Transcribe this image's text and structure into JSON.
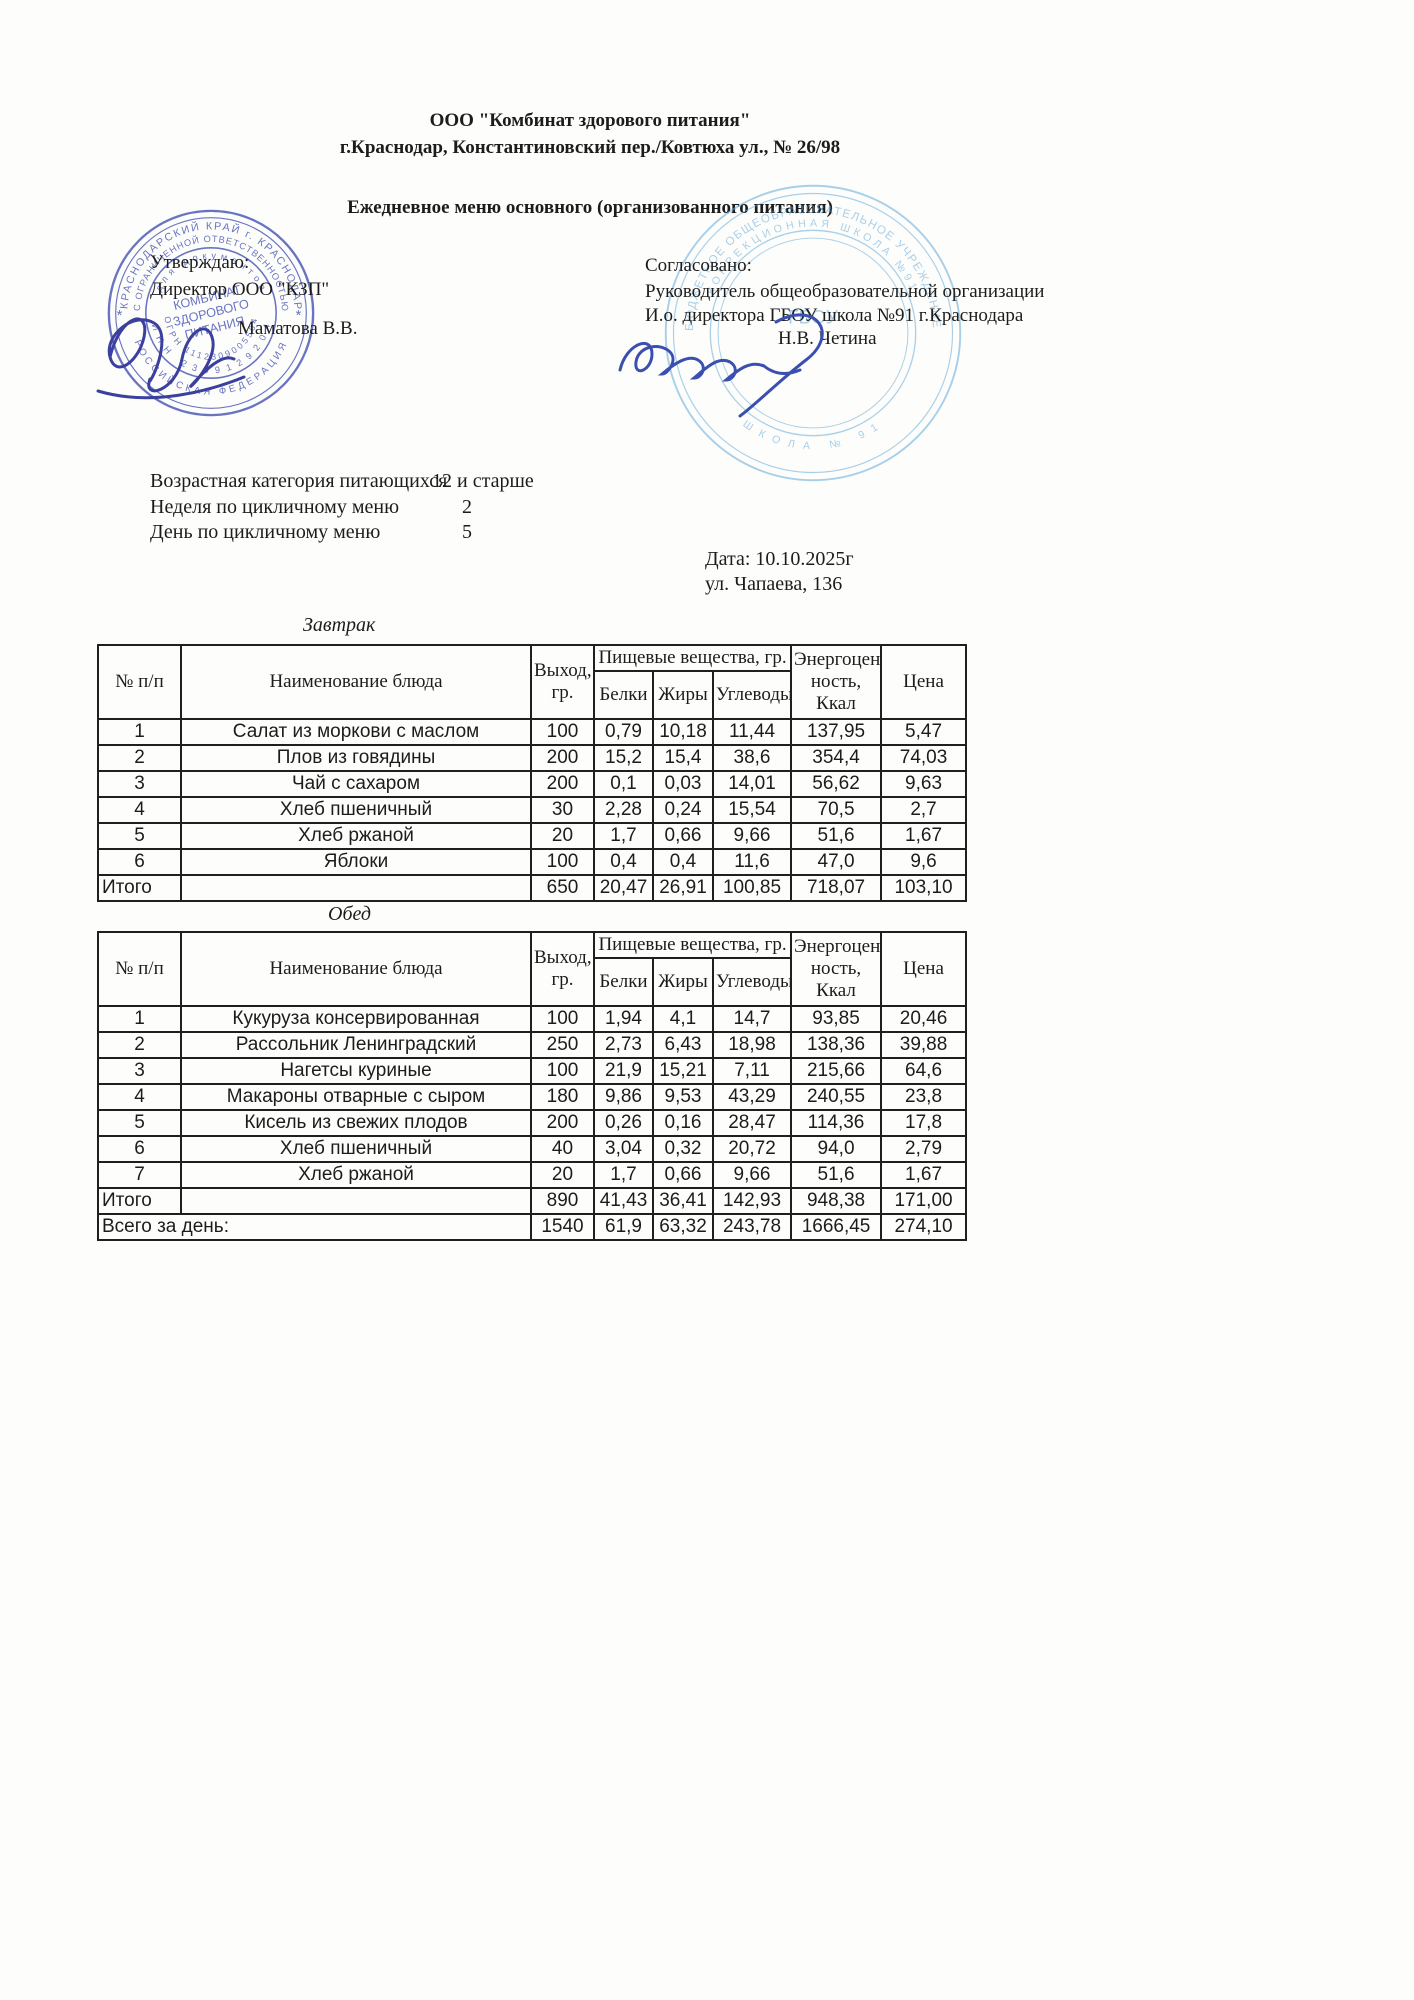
{
  "header": {
    "org_line1": "ООО \"Комбинат здорового питания\"",
    "org_line2": "г.Краснодар, Константиновский пер./Ковтюха ул., № 26/98",
    "title": "Ежедневное меню основного (организованного питания)"
  },
  "approve": {
    "label": "Утверждаю:",
    "role": "Директор ООО \"КЗП\"",
    "name": "Маматова В.В."
  },
  "agree": {
    "label": "Согласовано:",
    "role1": "Руководитель общеобразовательной организации",
    "role2": "И.о. директора ГБОУ школа №91 г.Краснодара",
    "name": "Н.В. Четина"
  },
  "meta": {
    "age_label": "Возрастная категория питающихся",
    "age_value": "12 и старше",
    "week_label": "Неделя по цикличному меню",
    "week_value": "2",
    "day_label": "День по цикличному меню",
    "day_value": "5",
    "date_line": "Дата:  10.10.2025г",
    "address_line": "ул. Чапаева, 136"
  },
  "table_headers": {
    "num": "№ п/п",
    "dish": "Наименование блюда",
    "out": "Выход, гр.",
    "nutrients": "Пищевые вещества, гр.",
    "protein": "Белки",
    "fat": "Жиры",
    "carbs": "Углеводы",
    "energy": "Энергоцен ность, Ккал",
    "price": "Цена"
  },
  "breakfast": {
    "section_title": "Завтрак",
    "rows": [
      [
        "1",
        "Салат из моркови с маслом",
        "100",
        "0,79",
        "10,18",
        "11,44",
        "137,95",
        "5,47"
      ],
      [
        "2",
        "Плов из говядины",
        "200",
        "15,2",
        "15,4",
        "38,6",
        "354,4",
        "74,03"
      ],
      [
        "3",
        "Чай с сахаром",
        "200",
        "0,1",
        "0,03",
        "14,01",
        "56,62",
        "9,63"
      ],
      [
        "4",
        "Хлеб пшеничный",
        "30",
        "2,28",
        "0,24",
        "15,54",
        "70,5",
        "2,7"
      ],
      [
        "5",
        "Хлеб ржаной",
        "20",
        "1,7",
        "0,66",
        "9,66",
        "51,6",
        "1,67"
      ],
      [
        "6",
        "Яблоки",
        "100",
        "0,4",
        "0,4",
        "11,6",
        "47,0",
        "9,6"
      ]
    ],
    "total_label": "Итого",
    "totals": [
      "650",
      "20,47",
      "26,91",
      "100,85",
      "718,07",
      "103,10"
    ]
  },
  "lunch": {
    "section_title": "Обед",
    "rows": [
      [
        "1",
        "Кукуруза консервированная",
        "100",
        "1,94",
        "4,1",
        "14,7",
        "93,85",
        "20,46"
      ],
      [
        "2",
        "Рассольник Ленинградский",
        "250",
        "2,73",
        "6,43",
        "18,98",
        "138,36",
        "39,88"
      ],
      [
        "3",
        "Нагетсы куриные",
        "100",
        "21,9",
        "15,21",
        "7,11",
        "215,66",
        "64,6"
      ],
      [
        "4",
        "Макароны отварные с сыром",
        "180",
        "9,86",
        "9,53",
        "43,29",
        "240,55",
        "23,8"
      ],
      [
        "5",
        "Кисель из свежих плодов",
        "200",
        "0,26",
        "0,16",
        "28,47",
        "114,36",
        "17,8"
      ],
      [
        "6",
        "Хлеб пшеничный",
        "40",
        "3,04",
        "0,32",
        "20,72",
        "94,0",
        "2,79"
      ],
      [
        "7",
        "Хлеб ржаной",
        "20",
        "1,7",
        "0,66",
        "9,66",
        "51,6",
        "1,67"
      ]
    ],
    "total_label": "Итого",
    "totals": [
      "890",
      "41,43",
      "36,41",
      "142,93",
      "948,38",
      "171,00"
    ],
    "grand_label": "Всего за день:",
    "grand": [
      "1540",
      "61,9",
      "63,32",
      "243,78",
      "1666,45",
      "274,10"
    ]
  },
  "seal_left": {
    "ring_outer": "КРАСНОДАРСКИЙ КРАЙ г. КРАСНОДАР",
    "ring_inner": "С ОГРАНИЧЕННОЙ ОТВЕТСТВЕННОСТЬЮ",
    "ring_bottom": "РОССИЙСКАЯ ФЕДЕРАЦИЯ",
    "doc_text": "для документов",
    "center1": "КОМБИНАТ",
    "center2": "ЗДОРОВОГО",
    "center3": "ПИТАНИЯ",
    "ogrn": "ОГРН 1112309005564",
    "inn": "ИНН 2309129204",
    "star_left": "*",
    "star_right": "*"
  },
  "seal_right": {
    "ring1": "БЮДЖЕТНОЕ ОБЩЕОБРАЗОВАТЕЛЬНОЕ УЧРЕЖДЕНИЕ",
    "ring2": "КОРРЕКЦИОННАЯ ШКОЛА №91",
    "bottom": "ШКОЛА № 91",
    "center": "ГБОУ"
  },
  "colors": {
    "seal_blue": "#4352b4",
    "seal_cyan": "#64abdb",
    "signature_ink": "#3b3f9e",
    "text": "#1c1c1c"
  }
}
